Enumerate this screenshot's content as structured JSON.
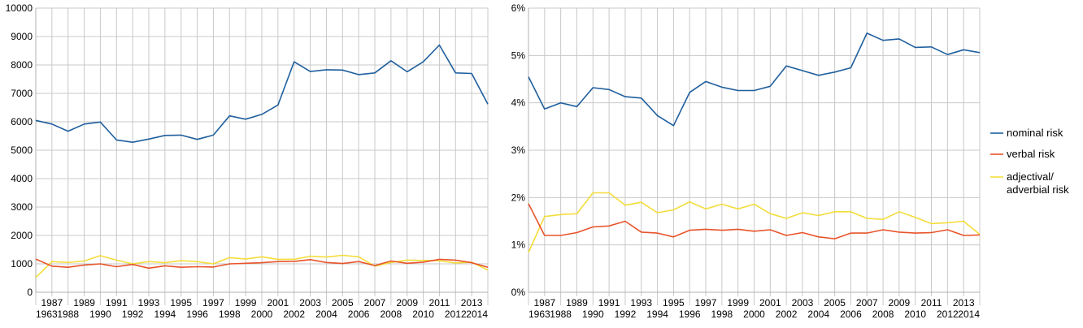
{
  "chart_data": [
    {
      "type": "line",
      "title": "",
      "xlabel": "",
      "ylabel": "",
      "categories": [
        "1963",
        "1987",
        "1988",
        "1989",
        "1990",
        "1991",
        "1992",
        "1993",
        "1994",
        "1995",
        "1996",
        "1997",
        "1998",
        "1999",
        "2000",
        "2001",
        "2002",
        "2003",
        "2004",
        "2005",
        "2006",
        "2007",
        "2008",
        "2009",
        "2010",
        "2011",
        "2012",
        "2013",
        "2014"
      ],
      "ylim": [
        0,
        10000
      ],
      "yticks": [
        "0",
        "1000",
        "2000",
        "3000",
        "4000",
        "5000",
        "6000",
        "7000",
        "8000",
        "9000",
        "10000"
      ],
      "grid": true,
      "series": [
        {
          "name": "nominal risk",
          "color": "#1f5f9e",
          "values": [
            6050,
            5920,
            5670,
            5920,
            5990,
            5360,
            5280,
            5390,
            5520,
            5530,
            5380,
            5530,
            6210,
            6090,
            6260,
            6590,
            8110,
            7770,
            7830,
            7820,
            7660,
            7720,
            8150,
            7760,
            8110,
            8700,
            7720,
            7700,
            6620
          ]
        },
        {
          "name": "verbal risk",
          "color": "#e8542a",
          "values": [
            1170,
            920,
            880,
            960,
            1000,
            900,
            980,
            850,
            930,
            880,
            900,
            890,
            1000,
            1020,
            1040,
            1080,
            1090,
            1150,
            1050,
            1010,
            1080,
            940,
            1100,
            1020,
            1060,
            1160,
            1130,
            1040,
            880
          ]
        },
        {
          "name": "adjectival/ adverbial risk",
          "color": "#f3dd3a",
          "values": [
            520,
            1080,
            1050,
            1100,
            1290,
            1130,
            1000,
            1080,
            1040,
            1110,
            1080,
            1000,
            1220,
            1170,
            1250,
            1160,
            1160,
            1270,
            1240,
            1300,
            1250,
            920,
            1050,
            1130,
            1120,
            1110,
            1030,
            1060,
            780
          ]
        }
      ]
    },
    {
      "type": "line",
      "title": "",
      "xlabel": "",
      "ylabel": "",
      "categories": [
        "1963",
        "1987",
        "1988",
        "1989",
        "1990",
        "1991",
        "1992",
        "1993",
        "1994",
        "1995",
        "1996",
        "1997",
        "1998",
        "1999",
        "2000",
        "2001",
        "2002",
        "2003",
        "2004",
        "2005",
        "2006",
        "2007",
        "2008",
        "2009",
        "2010",
        "2011",
        "2012",
        "2013",
        "2014"
      ],
      "ylim": [
        0,
        6
      ],
      "yticks": [
        "0%",
        "1%",
        "2%",
        "3%",
        "4%",
        "5%",
        "6%"
      ],
      "grid": true,
      "legend_position": "right",
      "series": [
        {
          "name": "nominal risk",
          "color": "#1f5f9e",
          "values": [
            4.55,
            3.87,
            4.0,
            3.92,
            4.32,
            4.28,
            4.13,
            4.1,
            3.73,
            3.52,
            4.22,
            4.45,
            4.33,
            4.26,
            4.26,
            4.35,
            4.78,
            4.68,
            4.58,
            4.65,
            4.74,
            5.47,
            5.32,
            5.35,
            5.17,
            5.18,
            5.02,
            5.12,
            5.06
          ]
        },
        {
          "name": "verbal risk",
          "color": "#e8542a",
          "values": [
            1.87,
            1.2,
            1.2,
            1.26,
            1.38,
            1.4,
            1.5,
            1.27,
            1.25,
            1.17,
            1.31,
            1.33,
            1.31,
            1.33,
            1.29,
            1.32,
            1.2,
            1.26,
            1.17,
            1.13,
            1.25,
            1.25,
            1.32,
            1.27,
            1.25,
            1.26,
            1.32,
            1.2,
            1.21
          ]
        },
        {
          "name": "adjectival/ adverbial risk",
          "color": "#f3dd3a",
          "values": [
            0.84,
            1.6,
            1.64,
            1.66,
            2.1,
            2.1,
            1.84,
            1.9,
            1.68,
            1.74,
            1.91,
            1.76,
            1.86,
            1.76,
            1.86,
            1.66,
            1.56,
            1.68,
            1.62,
            1.7,
            1.7,
            1.56,
            1.54,
            1.7,
            1.58,
            1.45,
            1.47,
            1.5,
            1.22
          ]
        }
      ]
    }
  ]
}
